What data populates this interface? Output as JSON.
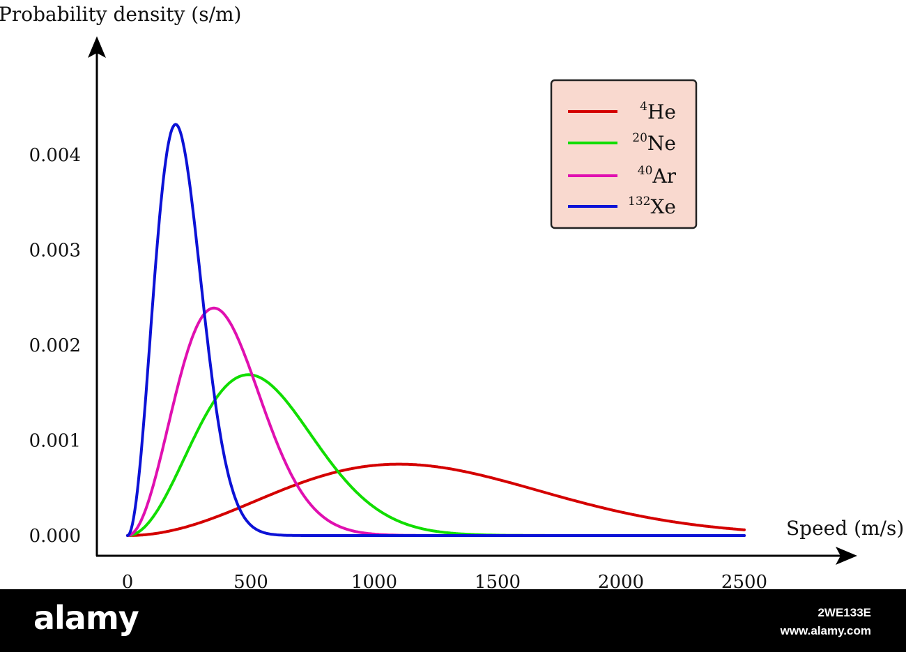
{
  "chart_data": {
    "type": "line",
    "xlabel": "Speed (m/s)",
    "ylabel": "Probability density (s/m)",
    "xlim": [
      0,
      2500
    ],
    "ylim": [
      0,
      0.0044
    ],
    "x_ticks": [
      "0",
      "500",
      "1000",
      "1500",
      "2000",
      "2500"
    ],
    "y_ticks": [
      "0.000",
      "0.001",
      "0.002",
      "0.003",
      "0.004"
    ],
    "legend_position": "top-right",
    "legend_background": "#f9d9cf",
    "series": [
      {
        "name_sup": "4",
        "name_base": "He",
        "color": "#d40000",
        "peak_speed": 1100,
        "peak_density": 0.00075,
        "x": [
          0,
          250,
          500,
          750,
          1000,
          1100,
          1250,
          1500,
          1750,
          2000,
          2250,
          2500
        ],
        "y": [
          0,
          8e-05,
          0.00028,
          0.00053,
          0.00072,
          0.00075,
          0.00073,
          0.00061,
          0.00044,
          0.00027,
          0.00015,
          7e-05
        ]
      },
      {
        "name_sup": "20",
        "name_base": "Ne",
        "color": "#11dd00",
        "peak_speed": 490,
        "peak_density": 0.00169,
        "x": [
          0,
          250,
          490,
          750,
          1000,
          1250,
          1500,
          2000,
          2500
        ],
        "y": [
          0,
          0.00081,
          0.00169,
          0.00117,
          0.00041,
          8e-05,
          1e-05,
          0.0,
          0.0
        ]
      },
      {
        "name_sup": "40",
        "name_base": "Ar",
        "color": "#e010b0",
        "peak_speed": 350,
        "peak_density": 0.00239,
        "x": [
          0,
          175,
          350,
          525,
          700,
          1000,
          1500,
          2500
        ],
        "y": [
          0,
          0.00145,
          0.00239,
          0.00133,
          0.00034,
          1e-05,
          0.0,
          0.0
        ]
      },
      {
        "name_sup": "132",
        "name_base": "Xe",
        "color": "#0c12d6",
        "peak_speed": 195,
        "peak_density": 0.00432,
        "x": [
          0,
          100,
          195,
          300,
          400,
          600,
          1000,
          2500
        ],
        "y": [
          0,
          0.00213,
          0.00432,
          0.00225,
          0.00044,
          0.0,
          0.0,
          0.0
        ]
      }
    ]
  },
  "footer": {
    "logo": "alamy",
    "image_id": "2WE133E",
    "site": "www.alamy.com"
  }
}
